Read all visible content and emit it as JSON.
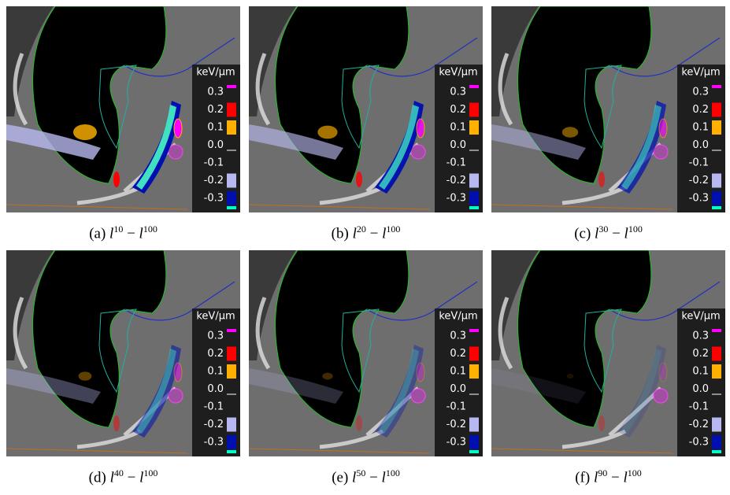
{
  "panels": [
    {
      "caption": {
        "label": "(a)",
        "var1": "l",
        "exp1": "10",
        "operator": "−",
        "var2": "l",
        "exp2": "100"
      }
    },
    {
      "caption": {
        "label": "(b)",
        "var1": "l",
        "exp1": "20",
        "operator": "−",
        "var2": "l",
        "exp2": "100"
      }
    },
    {
      "caption": {
        "label": "(c)",
        "var1": "l",
        "exp1": "30",
        "operator": "−",
        "var2": "l",
        "exp2": "100"
      }
    },
    {
      "caption": {
        "label": "(d)",
        "var1": "l",
        "exp1": "40",
        "operator": "−",
        "var2": "l",
        "exp2": "100"
      }
    },
    {
      "caption": {
        "label": "(e)",
        "var1": "l",
        "exp1": "50",
        "operator": "−",
        "var2": "l",
        "exp2": "100"
      }
    },
    {
      "caption": {
        "label": "(f)",
        "var1": "l",
        "exp1": "90",
        "operator": "−",
        "var2": "l",
        "exp2": "100"
      }
    }
  ],
  "legend": {
    "unit": "keV/µm",
    "labels": [
      "0.3",
      "0.2",
      "0.1",
      "0.0",
      "-0.1",
      "-0.2",
      "-0.3"
    ]
  }
}
